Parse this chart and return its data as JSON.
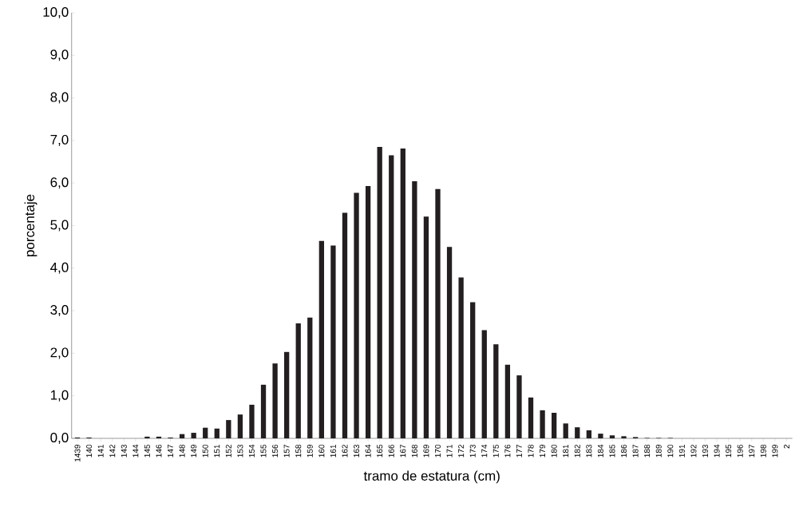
{
  "chart_data": {
    "type": "bar",
    "xlabel": "tramo de estatura (cm)",
    "ylabel": "porcentaje",
    "color": "#231f20",
    "categories": [
      "1439",
      "140",
      "141",
      "142",
      "143",
      "144",
      "145",
      "146",
      "147",
      "148",
      "149",
      "150",
      "151",
      "152",
      "153",
      "154",
      "155",
      "156",
      "157",
      "158",
      "159",
      "160",
      "161",
      "162",
      "163",
      "164",
      "165",
      "166",
      "167",
      "168",
      "169",
      "170",
      "171",
      "172",
      "173",
      "174",
      "175",
      "176",
      "177",
      "178",
      "179",
      "180",
      "181",
      "182",
      "183",
      "184",
      "185",
      "186",
      "187",
      "188",
      "189",
      "190",
      "191",
      "192",
      "193",
      "194",
      "195",
      "196",
      "197",
      "198",
      "199",
      "2"
    ],
    "values": [
      0.02,
      0.02,
      0,
      0,
      0,
      0,
      0.04,
      0.04,
      0.02,
      0.1,
      0.13,
      0.25,
      0.23,
      0.43,
      0.56,
      0.79,
      1.26,
      1.76,
      2.03,
      2.7,
      2.84,
      4.64,
      4.53,
      5.3,
      5.77,
      5.93,
      6.85,
      6.65,
      6.81,
      6.04,
      5.21,
      5.86,
      4.5,
      3.78,
      3.2,
      2.54,
      2.21,
      1.73,
      1.48,
      0.96,
      0.66,
      0.6,
      0.35,
      0.26,
      0.19,
      0.11,
      0.07,
      0.05,
      0.03,
      0.01,
      0.01,
      0.01,
      0,
      0,
      0,
      0,
      0,
      0,
      0,
      0,
      0,
      0
    ],
    "ylim": [
      0,
      10
    ],
    "yticks": [
      {
        "value": 0,
        "label": "0,0"
      },
      {
        "value": 1,
        "label": "1,0"
      },
      {
        "value": 2,
        "label": "2,0"
      },
      {
        "value": 3,
        "label": "3,0"
      },
      {
        "value": 4,
        "label": "4,0"
      },
      {
        "value": 5,
        "label": "5,0"
      },
      {
        "value": 6,
        "label": "6,0"
      },
      {
        "value": 7,
        "label": "7,0"
      },
      {
        "value": 8,
        "label": "8,0"
      },
      {
        "value": 9,
        "label": "9,0"
      },
      {
        "value": 10,
        "label": "10,0"
      }
    ],
    "grid": false
  }
}
